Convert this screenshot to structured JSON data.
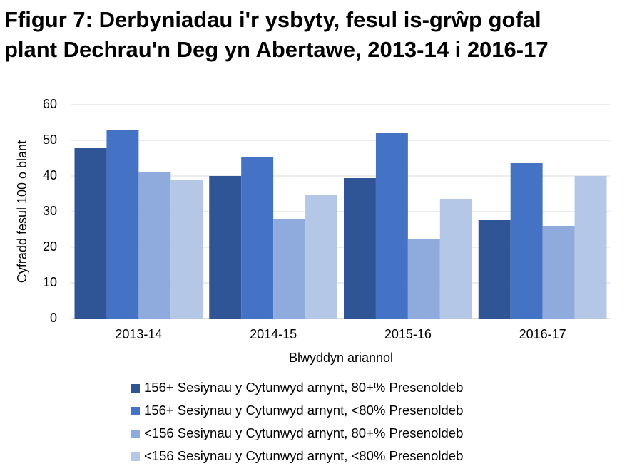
{
  "chart_data": {
    "type": "bar",
    "title": [
      "Ffigur 7: Derbyniadau i'r ysbyty, fesul is-grŵp gofal",
      "plant Dechrau'n Deg yn Abertawe, 2013-14 i 2016-17"
    ],
    "x_label": "Blwyddyn ariannol",
    "y_label": "Cyfradd fesul 100 o blant",
    "categories": [
      "2013-14",
      "2014-15",
      "2015-16",
      "2016-17"
    ],
    "series": [
      {
        "name": "156+ Sesiynau y Cytunwyd arnynt, 80+% Presenoldeb",
        "color": "#2f5597",
        "values": [
          47.8,
          40.0,
          39.4,
          27.6
        ]
      },
      {
        "name": "156+ Sesiynau y Cytunwyd arnynt, <80% Presenoldeb",
        "color": "#4472c4",
        "values": [
          53.0,
          45.2,
          52.2,
          43.6
        ]
      },
      {
        "name": "<156 Sesiynau y Cytunwyd arnynt, 80+% Presenoldeb",
        "color": "#8faadc",
        "values": [
          41.2,
          28.0,
          22.4,
          26.0
        ]
      },
      {
        "name": "<156 Sesiynau y Cytunwyd arnynt, <80% Presenoldeb",
        "color": "#b4c7e7",
        "values": [
          38.8,
          34.8,
          33.6,
          40.0
        ]
      }
    ],
    "ylim": [
      0,
      60
    ],
    "yticks": [
      0,
      10,
      20,
      30,
      40,
      50,
      60
    ],
    "grid": true,
    "legend": "bottom"
  }
}
